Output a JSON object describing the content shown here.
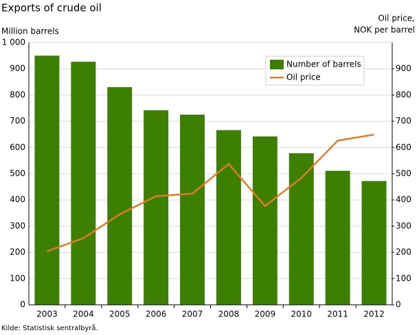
{
  "chart_data": {
    "type": "bar",
    "title": "Exports of crude oil",
    "y_label": "Million barrels",
    "y2_label": [
      "Oil price,",
      "NOK per barrel"
    ],
    "source": "Kilde: Statistisk sentralbyrå.",
    "categories": [
      "2003",
      "2004",
      "2005",
      "2006",
      "2007",
      "2008",
      "2009",
      "2010",
      "2011",
      "2012"
    ],
    "series": [
      {
        "name": "Number of barrels",
        "type": "bar",
        "color": "#3d7f00",
        "values": [
          950,
          927,
          830,
          742,
          725,
          666,
          642,
          578,
          511,
          472
        ]
      },
      {
        "name": "Oil price",
        "type": "line",
        "axis": "y2",
        "color": "#e07b26",
        "values": [
          204,
          254,
          345,
          414,
          424,
          537,
          377,
          484,
          626,
          649
        ]
      }
    ],
    "ylim": [
      0,
      1000
    ],
    "yticks": [
      0,
      100,
      200,
      300,
      400,
      500,
      600,
      700,
      800,
      900,
      {
        "value": 1000,
        "label": "1 000"
      }
    ],
    "y2lim": [
      0,
      1000
    ],
    "y2ticks": [
      0,
      100,
      200,
      300,
      400,
      500,
      600,
      700,
      800,
      900
    ],
    "grid": true,
    "legend": "top-right"
  }
}
